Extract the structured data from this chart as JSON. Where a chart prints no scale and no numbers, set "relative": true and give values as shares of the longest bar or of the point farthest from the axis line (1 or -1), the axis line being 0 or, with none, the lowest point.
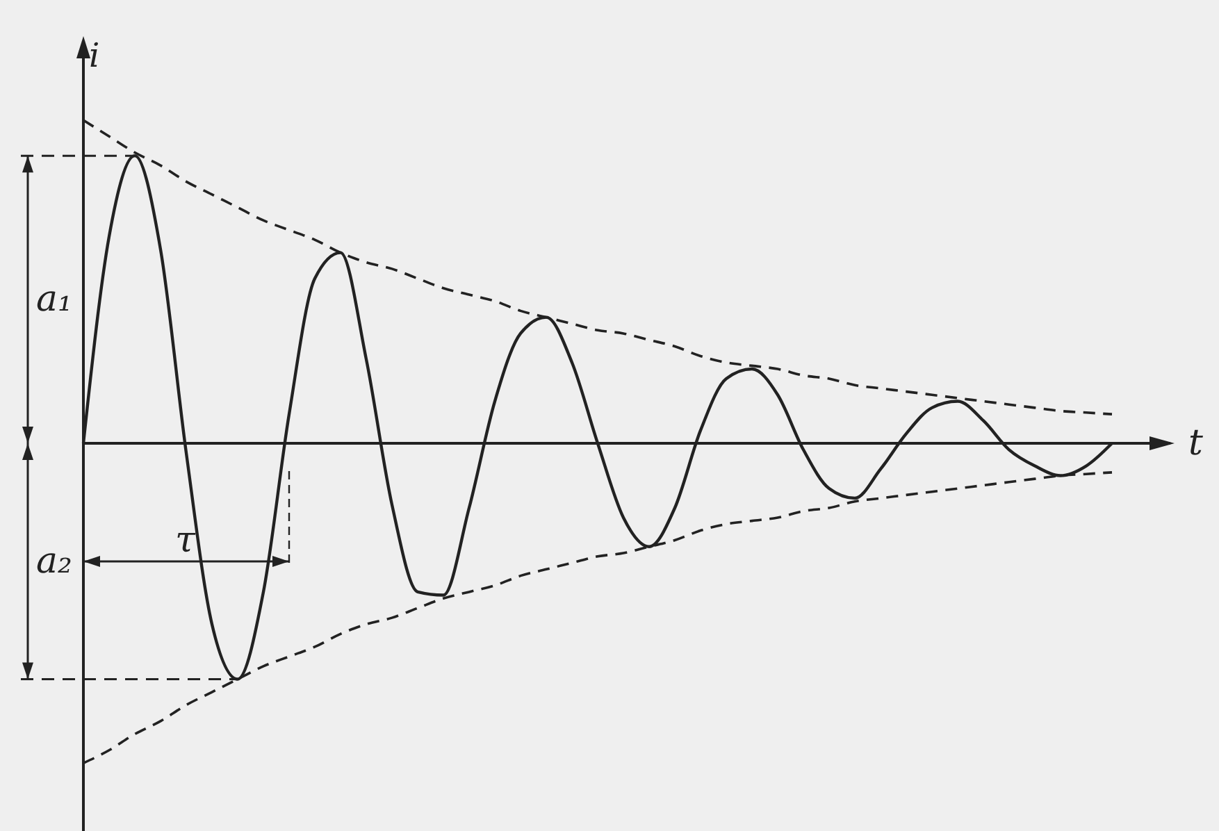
{
  "chart_data": {
    "type": "line",
    "relative": true,
    "xlabel": "t",
    "ylabel": "i",
    "tick_labels": false,
    "grid": false,
    "legend": false,
    "marker": "none",
    "annotations": [
      "a₁",
      "a₂",
      "τ"
    ],
    "categories": [
      null,
      null,
      null,
      null,
      null,
      null,
      null,
      null,
      null,
      null,
      null,
      null,
      null,
      null,
      null,
      null,
      null,
      null,
      null,
      null,
      null,
      null,
      null,
      null,
      null,
      null,
      null,
      null,
      null,
      null,
      null,
      null,
      null,
      null,
      null,
      null,
      null,
      null,
      null,
      null,
      null
    ],
    "series": [
      {
        "color": "#222222",
        "line_style": "solid",
        "values": [
          0,
          0.64,
          0.89,
          0.6,
          -0.03,
          -0.56,
          -0.73,
          -0.46,
          0.09,
          0.51,
          0.59,
          0.26,
          -0.19,
          -0.46,
          -0.47,
          -0.2,
          0.13,
          0.34,
          0.39,
          0.25,
          0,
          -0.23,
          -0.32,
          -0.2,
          0.04,
          0.2,
          0.23,
          0.15,
          -0.02,
          -0.14,
          -0.17,
          -0.08,
          0.03,
          0.11,
          0.13,
          0.07,
          -0.02,
          -0.07,
          -0.1,
          -0.07,
          0
        ]
      },
      {
        "color": "#222222",
        "line_style": "dashed",
        "values": [
          1,
          0.95,
          0.9,
          0.86,
          0.81,
          0.77,
          0.73,
          0.69,
          0.66,
          0.63,
          0.59,
          0.56,
          0.54,
          0.51,
          0.48,
          0.46,
          0.44,
          0.41,
          0.39,
          0.37,
          0.35,
          0.34,
          0.32,
          0.3,
          0.27,
          0.25,
          0.24,
          0.23,
          0.21,
          0.2,
          0.18,
          0.17,
          0.16,
          0.15,
          0.14,
          0.13,
          0.12,
          0.11,
          0.1,
          0.095,
          0.09
        ]
      },
      {
        "color": "#222222",
        "line_style": "dashed",
        "values": [
          -0.99,
          -0.95,
          -0.9,
          -0.86,
          -0.81,
          -0.77,
          -0.73,
          -0.69,
          -0.66,
          -0.63,
          -0.59,
          -0.56,
          -0.54,
          -0.51,
          -0.48,
          -0.46,
          -0.44,
          -0.41,
          -0.39,
          -0.37,
          -0.35,
          -0.34,
          -0.32,
          -0.3,
          -0.27,
          -0.25,
          -0.24,
          -0.23,
          -0.21,
          -0.2,
          -0.18,
          -0.17,
          -0.16,
          -0.15,
          -0.14,
          -0.13,
          -0.12,
          -0.11,
          -0.1,
          -0.095,
          -0.09
        ]
      }
    ]
  }
}
